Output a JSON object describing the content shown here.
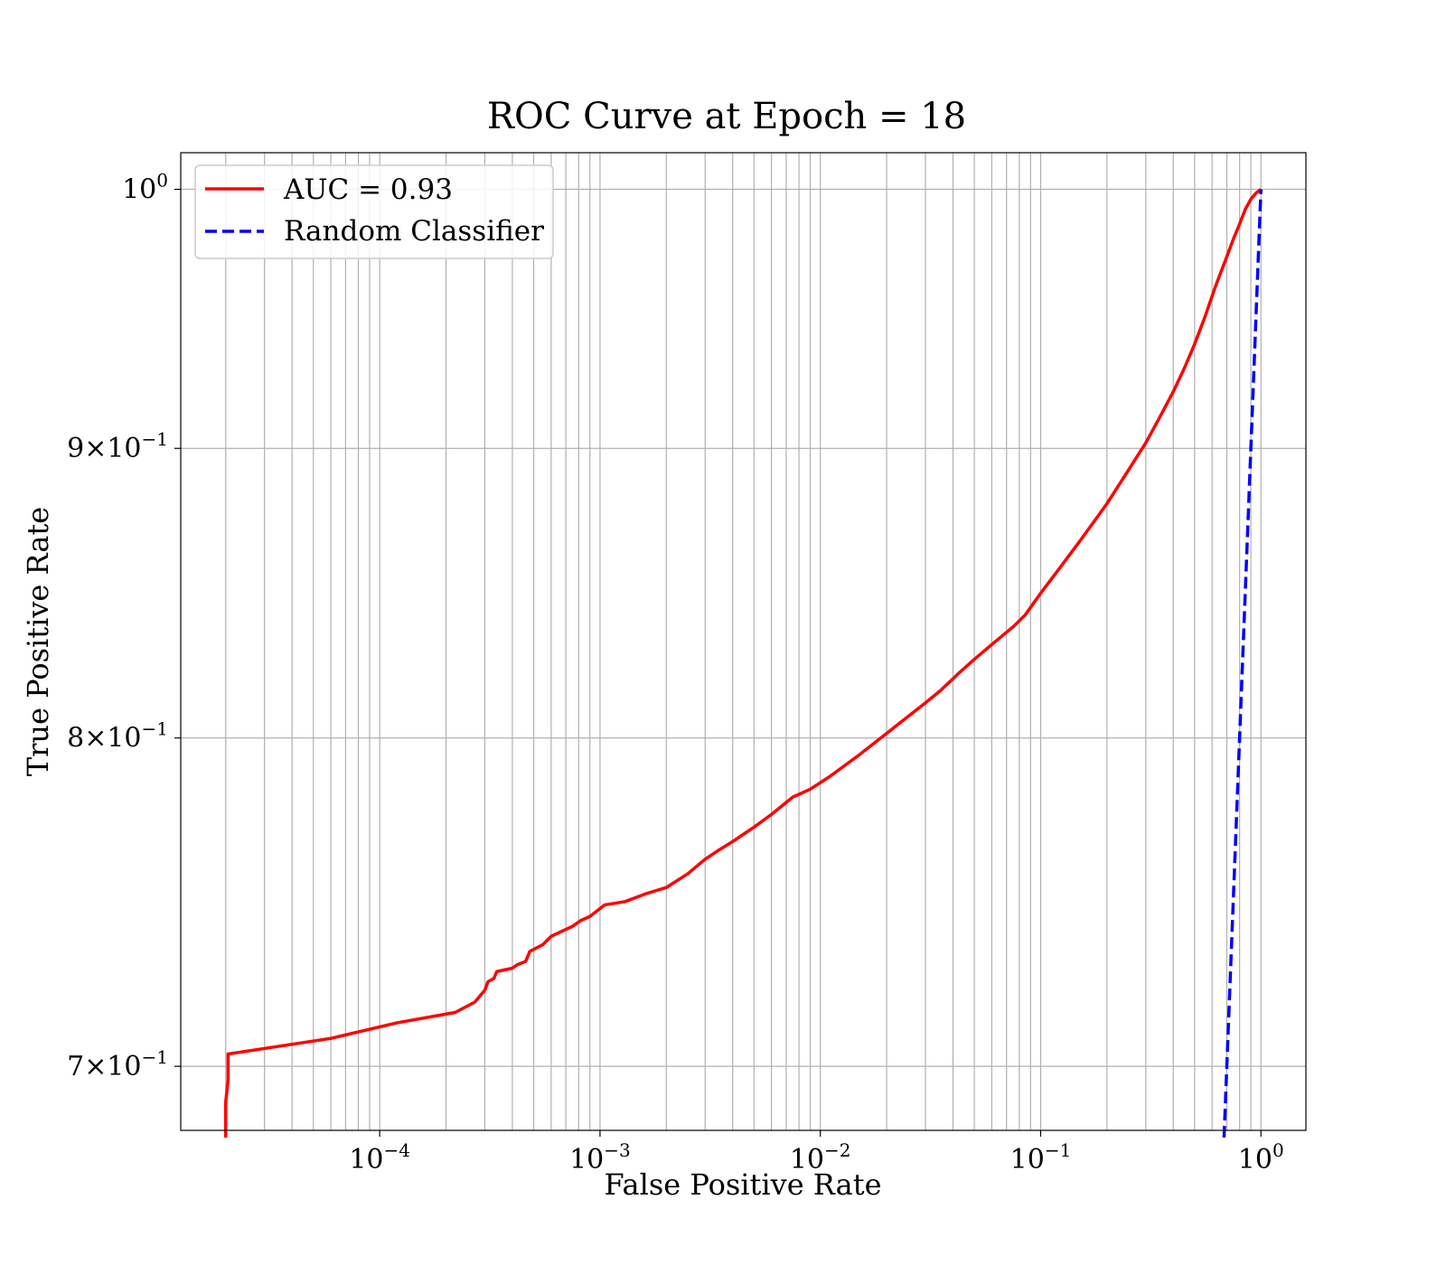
{
  "chart_data": {
    "type": "line",
    "title": "ROC Curve at Epoch = 18",
    "xlabel": "False Positive Rate",
    "ylabel": "True Positive Rate",
    "xscale": "log",
    "yscale": "log",
    "xlim": [
      1.25e-05,
      1.6
    ],
    "ylim": [
      0.682,
      1.015
    ],
    "grid": true,
    "grid_which": "both",
    "legend_position": "upper left",
    "x_ticks": [
      {
        "value": 0.0001,
        "base": "10",
        "exp": "−4"
      },
      {
        "value": 0.001,
        "base": "10",
        "exp": "−3"
      },
      {
        "value": 0.01,
        "base": "10",
        "exp": "−2"
      },
      {
        "value": 0.1,
        "base": "10",
        "exp": "−1"
      },
      {
        "value": 1,
        "base": "10",
        "exp": "0"
      }
    ],
    "y_ticks": [
      {
        "value": 1.0,
        "mant": "",
        "base": "10",
        "exp": "0"
      },
      {
        "value": 0.9,
        "mant": "9×",
        "base": "10",
        "exp": "−1"
      },
      {
        "value": 0.8,
        "mant": "8×",
        "base": "10",
        "exp": "−1"
      },
      {
        "value": 0.7,
        "mant": "7×",
        "base": "10",
        "exp": "−1"
      }
    ],
    "series": [
      {
        "name": "AUC = 0.93",
        "color": "#ff0000",
        "style": "solid",
        "points": [
          [
            2e-05,
            0.68
          ],
          [
            2e-05,
            0.69
          ],
          [
            2.05e-05,
            0.696
          ],
          [
            2.05e-05,
            0.7035
          ],
          [
            6e-05,
            0.708
          ],
          [
            0.00012,
            0.7125
          ],
          [
            0.00022,
            0.7155
          ],
          [
            0.00027,
            0.7185
          ],
          [
            0.0003,
            0.722
          ],
          [
            0.00031,
            0.7245
          ],
          [
            0.00033,
            0.7255
          ],
          [
            0.00034,
            0.7275
          ],
          [
            0.0004,
            0.7285
          ],
          [
            0.00042,
            0.7295
          ],
          [
            0.00046,
            0.7305
          ],
          [
            0.00048,
            0.7335
          ],
          [
            0.00055,
            0.7355
          ],
          [
            0.0006,
            0.738
          ],
          [
            0.00075,
            0.741
          ],
          [
            0.00082,
            0.7428
          ],
          [
            0.0009,
            0.744
          ],
          [
            0.00105,
            0.7475
          ],
          [
            0.0013,
            0.7485
          ],
          [
            0.0016,
            0.7508
          ],
          [
            0.002,
            0.7528
          ],
          [
            0.0025,
            0.757
          ],
          [
            0.003,
            0.7615
          ],
          [
            0.0034,
            0.764
          ],
          [
            0.004,
            0.767
          ],
          [
            0.005,
            0.7715
          ],
          [
            0.006,
            0.7755
          ],
          [
            0.0075,
            0.781
          ],
          [
            0.009,
            0.7835
          ],
          [
            0.011,
            0.7875
          ],
          [
            0.015,
            0.7945
          ],
          [
            0.02,
            0.8015
          ],
          [
            0.025,
            0.807
          ],
          [
            0.03,
            0.8115
          ],
          [
            0.035,
            0.8155
          ],
          [
            0.042,
            0.821
          ],
          [
            0.05,
            0.826
          ],
          [
            0.06,
            0.831
          ],
          [
            0.075,
            0.837
          ],
          [
            0.085,
            0.841
          ],
          [
            0.1,
            0.8485
          ],
          [
            0.12,
            0.8565
          ],
          [
            0.15,
            0.8665
          ],
          [
            0.18,
            0.875
          ],
          [
            0.2,
            0.88
          ],
          [
            0.25,
            0.892
          ],
          [
            0.3,
            0.902
          ],
          [
            0.35,
            0.912
          ],
          [
            0.4,
            0.921
          ],
          [
            0.45,
            0.93
          ],
          [
            0.5,
            0.939
          ],
          [
            0.56,
            0.95
          ],
          [
            0.62,
            0.961
          ],
          [
            0.7,
            0.973
          ],
          [
            0.75,
            0.98
          ],
          [
            0.8,
            0.986
          ],
          [
            0.85,
            0.992
          ],
          [
            0.9,
            0.996
          ],
          [
            0.95,
            0.9985
          ],
          [
            1.0,
            1.0
          ]
        ]
      },
      {
        "name": "Random Classifier",
        "color": "#0000ff",
        "style": "dashed",
        "points": [
          [
            0.68,
            0.68
          ],
          [
            0.7,
            0.7
          ],
          [
            0.72,
            0.72
          ],
          [
            0.74,
            0.74
          ],
          [
            0.76,
            0.76
          ],
          [
            0.78,
            0.78
          ],
          [
            0.8,
            0.8
          ],
          [
            0.82,
            0.82
          ],
          [
            0.84,
            0.84
          ],
          [
            0.86,
            0.86
          ],
          [
            0.88,
            0.88
          ],
          [
            0.9,
            0.9
          ],
          [
            0.92,
            0.92
          ],
          [
            0.94,
            0.94
          ],
          [
            0.96,
            0.96
          ],
          [
            0.98,
            0.98
          ],
          [
            1.0,
            1.0
          ]
        ]
      }
    ]
  }
}
